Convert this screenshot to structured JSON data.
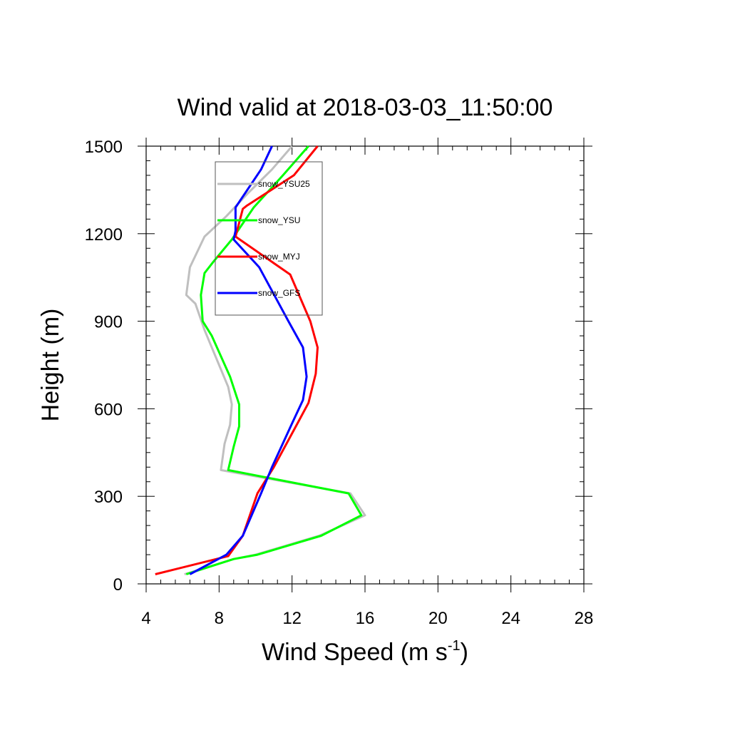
{
  "chart_data": {
    "type": "line",
    "title": "Wind valid at 2018-03-03_11:50:00",
    "xlabel": "Wind Speed (m s",
    "xlabel_superscript": "-1",
    "xlabel_close": ")",
    "ylabel": "Height (m)",
    "xlim": [
      4,
      28
    ],
    "ylim": [
      0,
      1500
    ],
    "xticks": [
      4,
      8,
      12,
      16,
      20,
      24,
      28
    ],
    "yticks": [
      0,
      300,
      600,
      900,
      1200,
      1500
    ],
    "legend_position": "top-left",
    "grid": false,
    "series": [
      {
        "name": "snow_YSU25",
        "color": "#bfbfbf",
        "points": [
          [
            6.1,
            33
          ],
          [
            8.8,
            85
          ],
          [
            10.0,
            100
          ],
          [
            13.5,
            165
          ],
          [
            16.0,
            235
          ],
          [
            15.2,
            310
          ],
          [
            8.1,
            390
          ],
          [
            8.3,
            480
          ],
          [
            8.6,
            545
          ],
          [
            8.7,
            615
          ],
          [
            8.5,
            675
          ],
          [
            7.6,
            810
          ],
          [
            7.2,
            870
          ],
          [
            6.7,
            960
          ],
          [
            6.2,
            990
          ],
          [
            6.4,
            1085
          ],
          [
            7.2,
            1190
          ],
          [
            8.4,
            1260
          ],
          [
            9.6,
            1340
          ],
          [
            10.9,
            1420
          ],
          [
            12.0,
            1500
          ]
        ]
      },
      {
        "name": "snow_YSU",
        "color": "#00ff00",
        "points": [
          [
            6.2,
            33
          ],
          [
            8.8,
            85
          ],
          [
            10.1,
            100
          ],
          [
            13.6,
            165
          ],
          [
            15.8,
            235
          ],
          [
            15.1,
            310
          ],
          [
            8.5,
            390
          ],
          [
            8.8,
            470
          ],
          [
            9.1,
            540
          ],
          [
            9.1,
            615
          ],
          [
            8.6,
            710
          ],
          [
            7.6,
            850
          ],
          [
            7.1,
            900
          ],
          [
            7.0,
            990
          ],
          [
            7.2,
            1065
          ],
          [
            7.7,
            1105
          ],
          [
            8.7,
            1180
          ],
          [
            9.9,
            1290
          ],
          [
            11.5,
            1400
          ],
          [
            12.9,
            1500
          ]
        ]
      },
      {
        "name": "snow_MYJ",
        "color": "#ff0000",
        "points": [
          [
            4.5,
            33
          ],
          [
            8.5,
            95
          ],
          [
            9.3,
            165
          ],
          [
            10.1,
            310
          ],
          [
            11.0,
            400
          ],
          [
            12.3,
            550
          ],
          [
            12.9,
            620
          ],
          [
            13.3,
            720
          ],
          [
            13.4,
            810
          ],
          [
            13.0,
            900
          ],
          [
            11.9,
            1060
          ],
          [
            8.9,
            1190
          ],
          [
            9.3,
            1285
          ],
          [
            9.5,
            1295
          ],
          [
            12.1,
            1400
          ],
          [
            13.4,
            1500
          ]
        ]
      },
      {
        "name": "snow_GFS",
        "color": "#0000ff",
        "points": [
          [
            6.4,
            33
          ],
          [
            8.4,
            100
          ],
          [
            9.3,
            165
          ],
          [
            10.3,
            310
          ],
          [
            10.9,
            400
          ],
          [
            12.0,
            550
          ],
          [
            12.6,
            630
          ],
          [
            12.8,
            710
          ],
          [
            12.6,
            810
          ],
          [
            11.8,
            900
          ],
          [
            10.2,
            1085
          ],
          [
            8.8,
            1180
          ],
          [
            8.9,
            1210
          ],
          [
            8.9,
            1290
          ],
          [
            10.3,
            1420
          ],
          [
            10.9,
            1500
          ]
        ]
      }
    ]
  }
}
